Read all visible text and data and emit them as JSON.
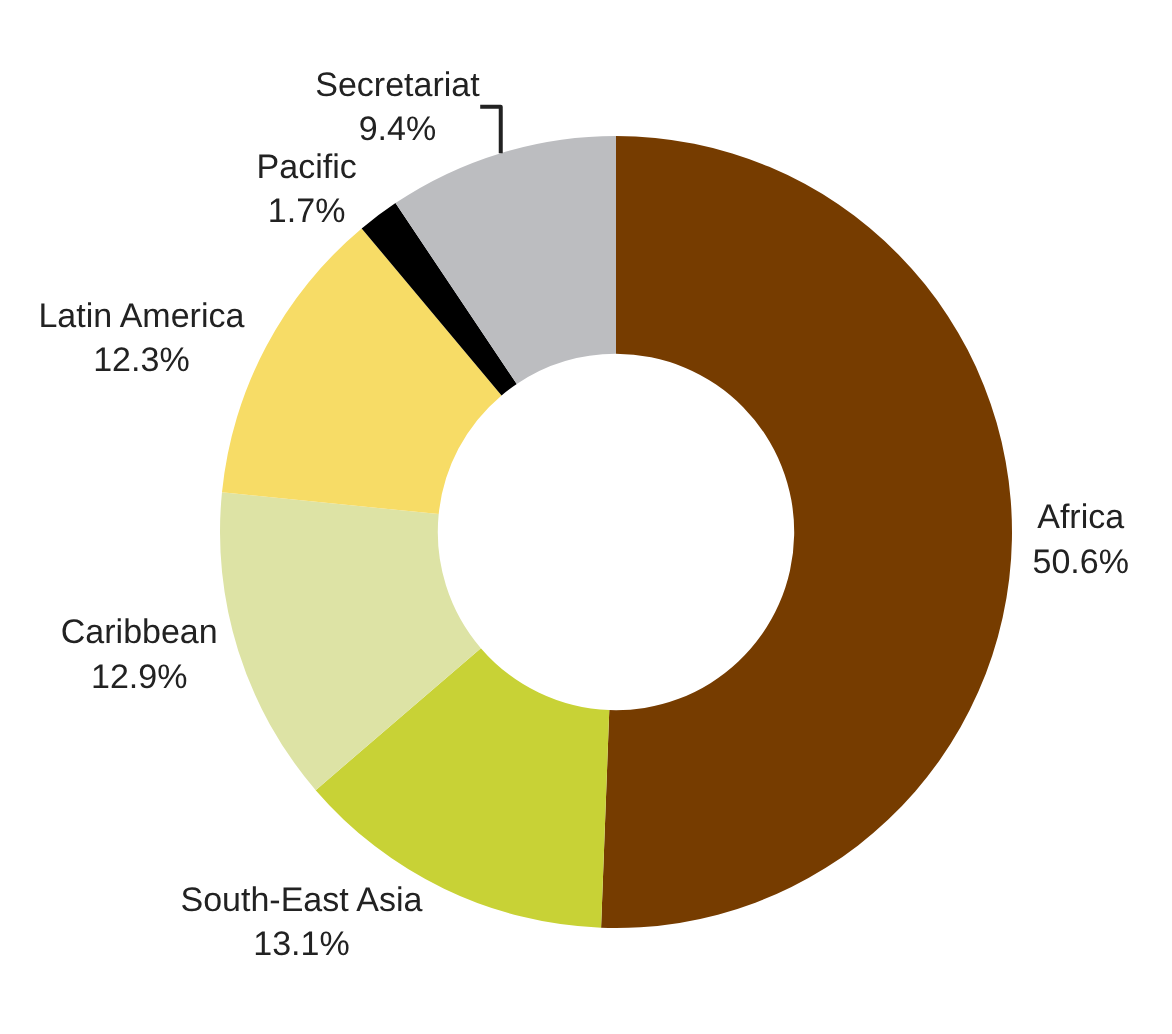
{
  "chart_data": {
    "type": "donut",
    "categories": [
      "Africa",
      "South-East Asia",
      "Caribbean",
      "Latin America",
      "Pacific",
      "Secretariat"
    ],
    "values": [
      50.6,
      13.1,
      12.9,
      12.3,
      1.7,
      9.4
    ],
    "value_labels": [
      "50.6%",
      "13.1%",
      "12.9%",
      "12.3%",
      "1.7%",
      "9.4%"
    ],
    "colors": [
      "#763c00",
      "#c8d236",
      "#dde3a5",
      "#f7dc66",
      "#000000",
      "#bcbdc0"
    ],
    "legend": false
  }
}
